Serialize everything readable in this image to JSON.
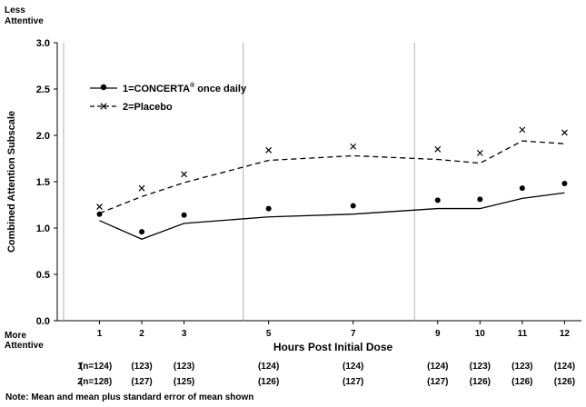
{
  "chart_data": {
    "type": "line",
    "ylabel": "Combined Attention Subscale",
    "xlabel": "Hours Post Initial Dose",
    "y_top_label": [
      "Less",
      "Attentive"
    ],
    "y_bottom_label": [
      "More",
      "Attentive"
    ],
    "ylim": [
      0.0,
      3.0
    ],
    "yticks": [
      "0.0",
      "0.5",
      "1.0",
      "1.5",
      "2.0",
      "2.5",
      "3.0"
    ],
    "x": [
      1,
      2,
      3,
      5,
      7,
      9,
      10,
      11,
      12
    ],
    "xtick_labels": [
      "1",
      "2",
      "3",
      "5",
      "7",
      "9",
      "10",
      "11",
      "12"
    ],
    "xlim": [
      0,
      12.4
    ],
    "vlines_at": [
      0.15,
      4.4,
      8.45
    ],
    "legend_position": "top-left",
    "grid": false,
    "series": [
      {
        "name": "1=CONCERTA",
        "name_sup": "®",
        "name_suffix": " once daily",
        "style": "solid",
        "marker": "dot",
        "mean": [
          1.08,
          0.88,
          1.05,
          1.12,
          1.15,
          1.21,
          1.21,
          1.32,
          1.38
        ],
        "mean_plus_se": [
          1.15,
          0.96,
          1.14,
          1.21,
          1.24,
          1.3,
          1.31,
          1.43,
          1.48
        ]
      },
      {
        "name": "2=Placebo",
        "style": "dashed",
        "marker": "x",
        "mean": [
          1.16,
          1.34,
          1.49,
          1.73,
          1.78,
          1.74,
          1.7,
          1.94,
          1.91
        ],
        "mean_plus_se": [
          1.23,
          1.43,
          1.58,
          1.84,
          1.88,
          1.85,
          1.81,
          2.06,
          2.03
        ]
      }
    ],
    "n_rows": [
      {
        "label": "1",
        "values": [
          "(n=124)",
          "(123)",
          "(123)",
          "(124)",
          "(124)",
          "(124)",
          "(123)",
          "(123)",
          "(124)"
        ]
      },
      {
        "label": "2",
        "values": [
          "(n=128)",
          "(127)",
          "(125)",
          "(126)",
          "(127)",
          "(127)",
          "(126)",
          "(126)",
          "(126)"
        ]
      }
    ],
    "note": "Note:  Mean and mean plus standard error of mean shown"
  }
}
